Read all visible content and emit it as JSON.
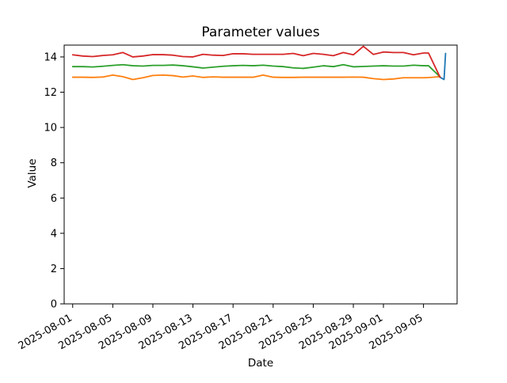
{
  "chart_data": {
    "type": "line",
    "title": "Parameter values",
    "xlabel": "Date",
    "ylabel": "Value",
    "grid": false,
    "legend": null,
    "ylim": [
      0,
      14.67
    ],
    "xlim_days": [
      -0.85,
      38.35
    ],
    "yticks": [
      0,
      2,
      4,
      6,
      8,
      10,
      12,
      14
    ],
    "xticks": [
      {
        "day": 0,
        "label": "2025-08-01"
      },
      {
        "day": 4,
        "label": "2025-08-05"
      },
      {
        "day": 8,
        "label": "2025-08-09"
      },
      {
        "day": 12,
        "label": "2025-08-13"
      },
      {
        "day": 16,
        "label": "2025-08-17"
      },
      {
        "day": 20,
        "label": "2025-08-21"
      },
      {
        "day": 24,
        "label": "2025-08-25"
      },
      {
        "day": 28,
        "label": "2025-08-29"
      },
      {
        "day": 31,
        "label": "2025-09-01"
      },
      {
        "day": 35,
        "label": "2025-09-05"
      }
    ],
    "x_tick_rotation_deg": 30,
    "date_origin": "2025-08-01",
    "series": [
      {
        "name": "series-blue",
        "color": "#1f77b4",
        "x_days": [
          36.6,
          37.05,
          37.2
        ],
        "values": [
          12.86,
          12.72,
          14.2
        ]
      },
      {
        "name": "series-orange",
        "color": "#ff7f0e",
        "x_days": [
          0,
          1,
          2,
          3,
          4,
          5,
          6,
          7,
          8,
          9,
          10,
          11,
          12,
          13,
          14,
          15,
          16,
          17,
          18,
          19,
          20,
          21,
          22,
          23,
          24,
          25,
          26,
          27,
          28,
          29,
          30,
          31,
          32,
          33,
          34,
          35,
          35.5,
          36.65
        ],
        "values": [
          12.85,
          12.85,
          12.84,
          12.86,
          12.97,
          12.88,
          12.72,
          12.82,
          12.95,
          12.97,
          12.94,
          12.86,
          12.92,
          12.84,
          12.87,
          12.85,
          12.85,
          12.85,
          12.85,
          12.97,
          12.85,
          12.84,
          12.84,
          12.85,
          12.85,
          12.85,
          12.85,
          12.85,
          12.86,
          12.85,
          12.77,
          12.72,
          12.75,
          12.82,
          12.82,
          12.82,
          12.83,
          12.88
        ]
      },
      {
        "name": "series-green",
        "color": "#2ca02c",
        "x_days": [
          0,
          1,
          2,
          3,
          4,
          5,
          6,
          7,
          8,
          9,
          10,
          11,
          12,
          13,
          14,
          15,
          16,
          17,
          18,
          19,
          20,
          21,
          22,
          23,
          24,
          25,
          26,
          27,
          28,
          29,
          30,
          31,
          32,
          33,
          34,
          35,
          35.5,
          36.65
        ],
        "values": [
          13.45,
          13.45,
          13.43,
          13.47,
          13.52,
          13.56,
          13.5,
          13.48,
          13.52,
          13.52,
          13.54,
          13.5,
          13.44,
          13.37,
          13.42,
          13.47,
          13.5,
          13.52,
          13.5,
          13.53,
          13.48,
          13.45,
          13.38,
          13.35,
          13.42,
          13.5,
          13.45,
          13.56,
          13.44,
          13.46,
          13.48,
          13.5,
          13.48,
          13.48,
          13.53,
          13.5,
          13.5,
          12.87
        ]
      },
      {
        "name": "series-red",
        "color": "#d62728",
        "x_days": [
          0,
          1,
          2,
          3,
          4,
          5,
          6,
          7,
          8,
          9,
          10,
          11,
          12,
          13,
          14,
          15,
          16,
          17,
          18,
          19,
          20,
          21,
          22,
          23,
          24,
          25,
          26,
          27,
          28,
          29,
          30,
          31,
          32,
          33,
          34,
          35,
          35.5,
          36.65
        ],
        "values": [
          14.12,
          14.05,
          14.02,
          14.08,
          14.12,
          14.25,
          14.0,
          14.05,
          14.13,
          14.13,
          14.1,
          14.02,
          14.0,
          14.15,
          14.1,
          14.08,
          14.18,
          14.18,
          14.15,
          14.15,
          14.15,
          14.15,
          14.2,
          14.07,
          14.2,
          14.15,
          14.07,
          14.25,
          14.12,
          14.6,
          14.14,
          14.28,
          14.25,
          14.25,
          14.12,
          14.22,
          14.22,
          12.85
        ]
      }
    ]
  }
}
